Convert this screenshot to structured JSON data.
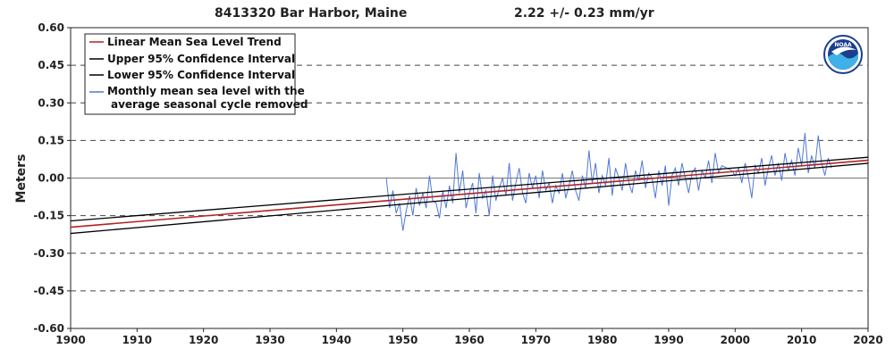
{
  "chart_data": {
    "type": "line",
    "title": "8413320 Bar Harbor, Maine",
    "trend_text": "2.22 +/-  0.23 mm/yr",
    "ylabel": "Meters",
    "xlabel": "",
    "xlim": [
      1900,
      2020
    ],
    "ylim": [
      -0.6,
      0.6
    ],
    "x_ticks": [
      1900,
      1910,
      1920,
      1930,
      1940,
      1950,
      1960,
      1970,
      1980,
      1990,
      2000,
      2010,
      2020
    ],
    "y_ticks": [
      0.6,
      0.45,
      0.3,
      0.15,
      0.0,
      -0.15,
      -0.3,
      -0.45,
      -0.6
    ],
    "y_tick_labels": [
      "0.60",
      "0.45",
      "0.30",
      "0.15",
      "0.00",
      "-0.15",
      "-0.30",
      "-0.45",
      "-0.60"
    ],
    "grid": "horizontal dashed",
    "legend_position": "top-left",
    "legend": [
      {
        "label": "Linear Mean Sea Level Trend",
        "color": "#b22222"
      },
      {
        "label": "Upper 95% Confidence Interval",
        "color": "#000000"
      },
      {
        "label": "Lower 95% Confidence Interval",
        "color": "#000000"
      },
      {
        "label": "Monthly mean sea level with the",
        "label2": "average seasonal cycle removed",
        "color": "#4f79d8"
      }
    ],
    "series": [
      {
        "name": "Linear Mean Sea Level Trend",
        "x": [
          1900,
          2020
        ],
        "y": [
          -0.196,
          0.071
        ],
        "color": "#b22222"
      },
      {
        "name": "Upper 95% Confidence Interval",
        "x": [
          1900,
          2020
        ],
        "y": [
          -0.171,
          0.083
        ],
        "color": "#000000"
      },
      {
        "name": "Lower 95% Confidence Interval",
        "x": [
          1900,
          2020
        ],
        "y": [
          -0.221,
          0.059
        ],
        "color": "#000000"
      },
      {
        "name": "Monthly mean sea level with the average seasonal cycle removed",
        "color": "#4f79d8",
        "x": [
          1947.5,
          1948,
          1948.5,
          1949,
          1949.5,
          1950,
          1950.5,
          1951,
          1951.5,
          1952,
          1952.5,
          1953,
          1953.5,
          1954,
          1954.5,
          1955,
          1955.5,
          1956,
          1956.5,
          1957,
          1957.5,
          1958,
          1958.5,
          1959,
          1959.5,
          1960,
          1960.5,
          1961,
          1961.5,
          1962,
          1962.5,
          1963,
          1963.5,
          1964,
          1964.5,
          1965,
          1965.5,
          1966,
          1966.5,
          1967,
          1967.5,
          1968,
          1968.5,
          1969,
          1969.5,
          1970,
          1970.5,
          1971,
          1971.5,
          1972,
          1972.5,
          1973,
          1973.5,
          1974,
          1974.5,
          1975,
          1975.5,
          1976,
          1976.5,
          1977,
          1977.5,
          1978,
          1978.5,
          1979,
          1979.5,
          1980,
          1980.5,
          1981,
          1981.5,
          1982,
          1982.5,
          1983,
          1983.5,
          1984,
          1984.5,
          1985,
          1985.5,
          1986,
          1986.5,
          1987,
          1987.5,
          1988,
          1988.5,
          1989,
          1989.5,
          1990,
          1990.5,
          1991,
          1991.5,
          1992,
          1992.5,
          1993,
          1993.5,
          1994,
          1994.5,
          1995,
          1995.5,
          1996,
          1996.5,
          1997,
          1997.5,
          1998,
          1999.5,
          2000,
          2000.5,
          2001,
          2001.5,
          2002,
          2002.5,
          2003,
          2003.5,
          2004,
          2004.5,
          2005,
          2005.5,
          2006,
          2006.5,
          2007,
          2007.5,
          2008,
          2008.5,
          2009,
          2009.5,
          2010,
          2010.5,
          2011,
          2011.5,
          2012,
          2012.5,
          2013,
          2013.5,
          2014,
          2014.5
        ],
        "y": [
          0.0,
          -0.12,
          -0.05,
          -0.14,
          -0.1,
          -0.21,
          -0.13,
          -0.07,
          -0.15,
          -0.04,
          -0.11,
          -0.06,
          -0.12,
          0.01,
          -0.09,
          -0.1,
          -0.16,
          -0.05,
          -0.12,
          -0.03,
          -0.1,
          0.1,
          -0.06,
          0.03,
          -0.12,
          -0.06,
          -0.02,
          -0.14,
          0.02,
          -0.08,
          -0.05,
          -0.15,
          0.01,
          -0.09,
          -0.04,
          0.0,
          -0.07,
          0.06,
          -0.09,
          -0.02,
          0.04,
          -0.06,
          -0.1,
          0.02,
          -0.04,
          0.01,
          -0.08,
          0.03,
          -0.05,
          -0.02,
          -0.1,
          -0.03,
          -0.06,
          0.02,
          -0.08,
          -0.03,
          0.03,
          -0.05,
          -0.09,
          0.01,
          -0.04,
          0.11,
          -0.02,
          0.06,
          -0.06,
          0.01,
          -0.03,
          0.08,
          -0.07,
          0.04,
          0.0,
          -0.05,
          0.06,
          -0.02,
          -0.06,
          0.03,
          -0.01,
          0.07,
          -0.04,
          0.02,
          0.0,
          -0.08,
          0.03,
          -0.03,
          0.05,
          -0.11,
          0.01,
          0.04,
          -0.03,
          0.06,
          0.0,
          -0.06,
          0.02,
          0.04,
          -0.05,
          0.03,
          0.0,
          0.07,
          -0.02,
          0.1,
          0.02,
          0.05,
          0.03,
          0.01,
          0.04,
          -0.02,
          0.06,
          0.0,
          -0.08,
          0.05,
          0.02,
          0.08,
          -0.03,
          0.04,
          0.09,
          0.01,
          0.06,
          -0.01,
          0.1,
          0.03,
          0.07,
          0.01,
          0.12,
          0.05,
          0.18,
          0.02,
          0.09,
          0.04,
          0.17,
          0.06,
          0.01,
          0.08,
          0.04
        ]
      }
    ]
  },
  "logo_text": "NOAA"
}
